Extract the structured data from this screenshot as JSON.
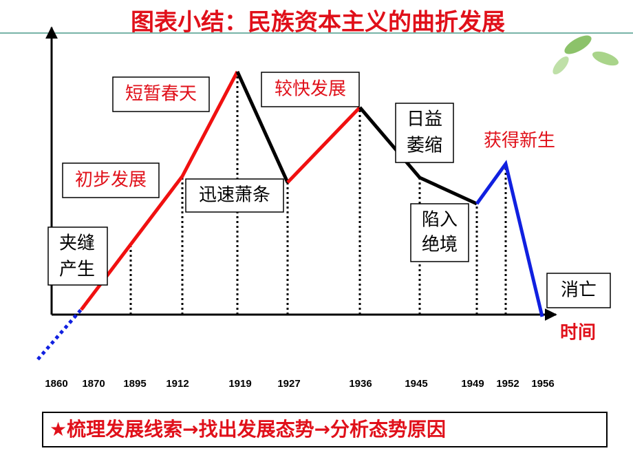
{
  "header": {
    "title": "图表小结：民族资本主义的曲折发展"
  },
  "axis": {
    "x_label": "时间",
    "years": [
      "1860",
      "1870",
      "1895",
      "1912",
      "1919",
      "1927",
      "1936",
      "1945",
      "1949",
      "1952",
      "1956"
    ]
  },
  "stages": [
    {
      "lines": [
        "夹缝",
        "产生"
      ]
    },
    {
      "lines": [
        "初步发展"
      ]
    },
    {
      "lines": [
        "短暂春天"
      ]
    },
    {
      "lines": [
        "迅速萧条"
      ]
    },
    {
      "lines": [
        "较快发展"
      ]
    },
    {
      "lines": [
        "日益",
        "萎缩"
      ]
    },
    {
      "lines": [
        "陷入",
        "绝境"
      ]
    },
    {
      "lines": [
        "获得新生"
      ]
    },
    {
      "lines": [
        "消亡"
      ]
    }
  ],
  "footer": {
    "text": "★梳理发展线索→找出发展态势→分析态势原因"
  }
}
